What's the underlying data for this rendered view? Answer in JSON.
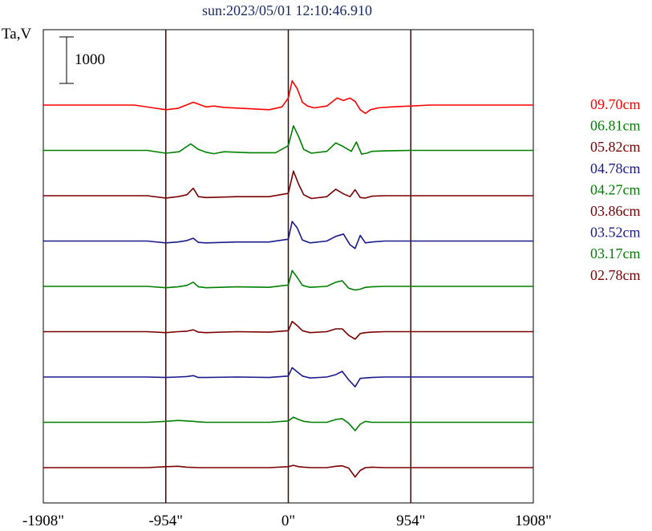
{
  "chart_data": {
    "type": "line",
    "title": "sun:2023/05/01 12:10:46.910",
    "ylabel": "Ta,V",
    "xlabel": "",
    "scale_bar_label": "1000",
    "scale_bar_value": 1000,
    "x_range": [
      -1908,
      1908
    ],
    "x_ticks": [
      {
        "value": -1908,
        "label": "-1908\""
      },
      {
        "value": -954,
        "label": "-954\""
      },
      {
        "value": 0,
        "label": "0\""
      },
      {
        "value": 954,
        "label": "954\""
      },
      {
        "value": 1908,
        "label": "1908\""
      }
    ],
    "vertical_lines": [
      -954,
      0,
      954
    ],
    "grid": false,
    "legend_position": "right",
    "series": [
      {
        "name": "09.70cm",
        "color": "#ff0000",
        "x": [
          -1908,
          -1500,
          -1200,
          -1050,
          -954,
          -860,
          -740,
          -690,
          -640,
          -580,
          -500,
          -300,
          -150,
          -50,
          0,
          30,
          70,
          110,
          150,
          200,
          300,
          380,
          430,
          480,
          520,
          560,
          600,
          640,
          700,
          800,
          954,
          1100,
          1300,
          1500,
          1908
        ],
        "y": [
          0,
          0,
          0,
          -60,
          -100,
          -70,
          60,
          10,
          -40,
          -20,
          -50,
          -80,
          -100,
          -40,
          150,
          520,
          350,
          60,
          -20,
          -60,
          -20,
          150,
          100,
          150,
          80,
          -100,
          -180,
          -100,
          -60,
          -40,
          -20,
          0,
          0,
          0,
          0
        ]
      },
      {
        "name": "06.81cm",
        "color": "#008000",
        "x": [
          -1908,
          -1500,
          -1100,
          -954,
          -850,
          -760,
          -700,
          -640,
          -580,
          -500,
          -300,
          -100,
          0,
          40,
          80,
          120,
          180,
          300,
          370,
          430,
          490,
          530,
          570,
          610,
          650,
          750,
          954,
          1300,
          1908
        ],
        "y": [
          0,
          0,
          0,
          -60,
          -30,
          140,
          20,
          -40,
          -70,
          -30,
          -50,
          -50,
          100,
          530,
          300,
          20,
          -60,
          -20,
          160,
          80,
          -20,
          180,
          -80,
          -60,
          -20,
          -10,
          0,
          0,
          0
        ]
      },
      {
        "name": "05.82cm",
        "color": "#7a0000",
        "x": [
          -1908,
          -1500,
          -1100,
          -954,
          -860,
          -790,
          -740,
          -700,
          -640,
          -400,
          -150,
          0,
          40,
          80,
          120,
          180,
          300,
          370,
          430,
          480,
          520,
          560,
          600,
          650,
          750,
          954,
          1300,
          1908
        ],
        "y": [
          0,
          0,
          0,
          -50,
          -20,
          20,
          160,
          -20,
          -40,
          -20,
          -20,
          50,
          530,
          250,
          20,
          -60,
          -20,
          140,
          40,
          -20,
          130,
          -40,
          -50,
          -10,
          0,
          0,
          0,
          0
        ]
      },
      {
        "name": "04.78cm",
        "color": "#1a1a8a",
        "x": [
          -1908,
          -1500,
          -1100,
          -954,
          -860,
          -790,
          -740,
          -700,
          -640,
          -400,
          -150,
          0,
          30,
          70,
          110,
          170,
          300,
          370,
          430,
          480,
          520,
          560,
          600,
          650,
          750,
          954,
          1300,
          1908
        ],
        "y": [
          0,
          0,
          0,
          -40,
          -20,
          10,
          60,
          -30,
          -40,
          -20,
          -20,
          40,
          420,
          280,
          20,
          -40,
          0,
          100,
          150,
          -80,
          -160,
          120,
          -40,
          -20,
          0,
          0,
          0,
          0
        ]
      },
      {
        "name": "04.27cm",
        "color": "#008000",
        "x": [
          -1908,
          -1500,
          -1100,
          -954,
          -860,
          -790,
          -740,
          -700,
          -640,
          -400,
          -150,
          0,
          30,
          70,
          110,
          170,
          300,
          370,
          420,
          470,
          520,
          560,
          600,
          650,
          750,
          954,
          1300,
          1908
        ],
        "y": [
          0,
          0,
          0,
          -30,
          -10,
          20,
          90,
          -10,
          -30,
          -10,
          -20,
          30,
          340,
          190,
          20,
          -20,
          0,
          90,
          120,
          -40,
          -80,
          -60,
          -20,
          -10,
          0,
          0,
          0,
          0
        ]
      },
      {
        "name": "03.86cm",
        "color": "#7a0000",
        "x": [
          -1908,
          -1500,
          -1100,
          -954,
          -860,
          -790,
          -740,
          -700,
          -640,
          -400,
          -150,
          0,
          30,
          70,
          110,
          170,
          300,
          370,
          420,
          470,
          520,
          560,
          600,
          650,
          750,
          954,
          1300,
          1908
        ],
        "y": [
          0,
          0,
          0,
          -20,
          0,
          10,
          40,
          -10,
          -20,
          0,
          -10,
          20,
          220,
          130,
          20,
          -20,
          0,
          60,
          60,
          -80,
          -160,
          -40,
          -20,
          -10,
          0,
          0,
          0,
          0
        ]
      },
      {
        "name": "03.52cm",
        "color": "#1a1a8a",
        "x": [
          -1908,
          -1500,
          -1100,
          -954,
          -860,
          -790,
          -740,
          -700,
          -640,
          -400,
          -150,
          0,
          30,
          70,
          110,
          170,
          300,
          370,
          420,
          470,
          520,
          560,
          600,
          650,
          750,
          954,
          1300,
          1908
        ],
        "y": [
          0,
          0,
          0,
          -10,
          0,
          10,
          30,
          -10,
          -10,
          0,
          -10,
          20,
          200,
          110,
          20,
          -20,
          0,
          50,
          120,
          -60,
          -210,
          -30,
          -20,
          -10,
          0,
          0,
          0,
          0
        ]
      },
      {
        "name": "03.17cm",
        "color": "#008000",
        "x": [
          -1908,
          -1500,
          -1100,
          -954,
          -860,
          -790,
          -740,
          -700,
          -640,
          -400,
          -150,
          0,
          40,
          80,
          120,
          180,
          300,
          370,
          420,
          470,
          520,
          560,
          600,
          650,
          750,
          954,
          1300,
          1908
        ],
        "y": [
          0,
          0,
          0,
          20,
          40,
          30,
          20,
          10,
          0,
          0,
          0,
          30,
          110,
          60,
          20,
          0,
          0,
          60,
          80,
          -20,
          -180,
          -40,
          20,
          0,
          0,
          0,
          0,
          0
        ]
      },
      {
        "name": "02.78cm",
        "color": "#7a0000",
        "x": [
          -1908,
          -1500,
          -1100,
          -954,
          -860,
          -790,
          -700,
          -640,
          -400,
          -150,
          0,
          40,
          80,
          120,
          180,
          300,
          370,
          420,
          470,
          520,
          560,
          600,
          650,
          750,
          954,
          1300,
          1908
        ],
        "y": [
          0,
          0,
          0,
          20,
          30,
          10,
          0,
          0,
          0,
          0,
          20,
          50,
          20,
          10,
          0,
          0,
          30,
          40,
          -10,
          -200,
          -60,
          0,
          10,
          0,
          0,
          0,
          0
        ]
      }
    ]
  }
}
